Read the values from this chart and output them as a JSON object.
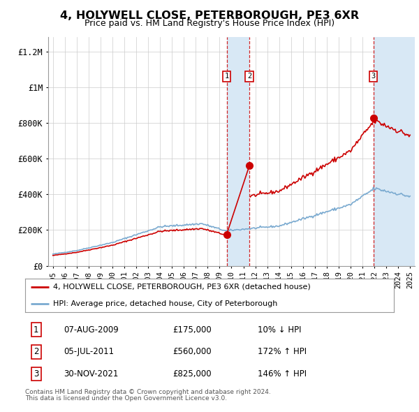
{
  "title": "4, HOLYWELL CLOSE, PETERBOROUGH, PE3 6XR",
  "subtitle": "Price paid vs. HM Land Registry's House Price Index (HPI)",
  "ylabel_ticks": [
    "£0",
    "£200K",
    "£400K",
    "£600K",
    "£800K",
    "£1M",
    "£1.2M"
  ],
  "ytick_values": [
    0,
    200000,
    400000,
    600000,
    800000,
    1000000,
    1200000
  ],
  "ylim": [
    0,
    1280000
  ],
  "xlim_start": 1994.6,
  "xlim_end": 2025.4,
  "hpi_color": "#7aaad0",
  "price_color": "#cc0000",
  "shade_color": "#d8e8f5",
  "sale_events": [
    {
      "year": 2009.59,
      "price": 175000,
      "label": "1"
    },
    {
      "year": 2011.5,
      "price": 560000,
      "label": "2"
    },
    {
      "year": 2021.92,
      "price": 825000,
      "label": "3"
    }
  ],
  "legend_entries": [
    "4, HOLYWELL CLOSE, PETERBOROUGH, PE3 6XR (detached house)",
    "HPI: Average price, detached house, City of Peterborough"
  ],
  "table_rows": [
    [
      "1",
      "07-AUG-2009",
      "£175,000",
      "10% ↓ HPI"
    ],
    [
      "2",
      "05-JUL-2011",
      "£560,000",
      "172% ↑ HPI"
    ],
    [
      "3",
      "30-NOV-2021",
      "£825,000",
      "146% ↑ HPI"
    ]
  ],
  "footer_line1": "Contains HM Land Registry data © Crown copyright and database right 2024.",
  "footer_line2": "This data is licensed under the Open Government Licence v3.0.",
  "background_color": "#ffffff",
  "grid_color": "#cccccc"
}
